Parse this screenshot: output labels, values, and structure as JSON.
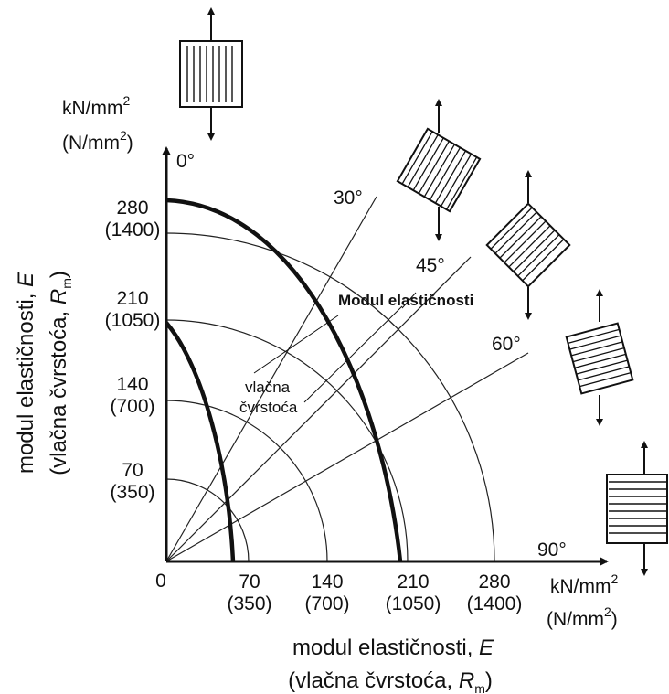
{
  "axes": {
    "y_unit": "kN/mm",
    "y_unit_exp": "2",
    "y_unit2": "(N/mm",
    "y_unit2_exp": "2",
    "y_unit2_close": ")",
    "x_unit": "kN/mm",
    "x_unit_exp": "2",
    "x_unit2": "(N/mm",
    "x_unit2_exp": "2",
    "x_unit2_close": ")",
    "origin": "0",
    "y_ticks": [
      {
        "value": "280",
        "sub": "(1400)"
      },
      {
        "value": "210",
        "sub": "(1050)"
      },
      {
        "value": "140",
        "sub": "(700)"
      },
      {
        "value": "70",
        "sub": "(350)"
      }
    ],
    "x_ticks": [
      {
        "value": "70",
        "sub": "(350)"
      },
      {
        "value": "140",
        "sub": "(700)"
      },
      {
        "value": "210",
        "sub": "(1050)"
      },
      {
        "value": "280",
        "sub": "(1400)"
      }
    ],
    "y_title_line1": "modul elastičnosti, ",
    "y_title_line1_italic": "E",
    "y_title_line2": "(vlačna čvrstoća, ",
    "y_title_line2_italic": "R",
    "y_title_line2_sub": "m",
    "y_title_line2_close": ")",
    "x_title_line1": "modul elastičnosti, ",
    "x_title_line1_italic": "E",
    "x_title_line2": "(vlačna čvrstoća, ",
    "x_title_line2_italic": "R",
    "x_title_line2_sub": "m",
    "x_title_line2_close": ")"
  },
  "angles": [
    "0°",
    "30°",
    "45°",
    "60°",
    "90°"
  ],
  "annotations": {
    "modulus": "Modul elastičnosti",
    "strength_line1": "vlačna",
    "strength_line2": "čvrstoća"
  }
}
